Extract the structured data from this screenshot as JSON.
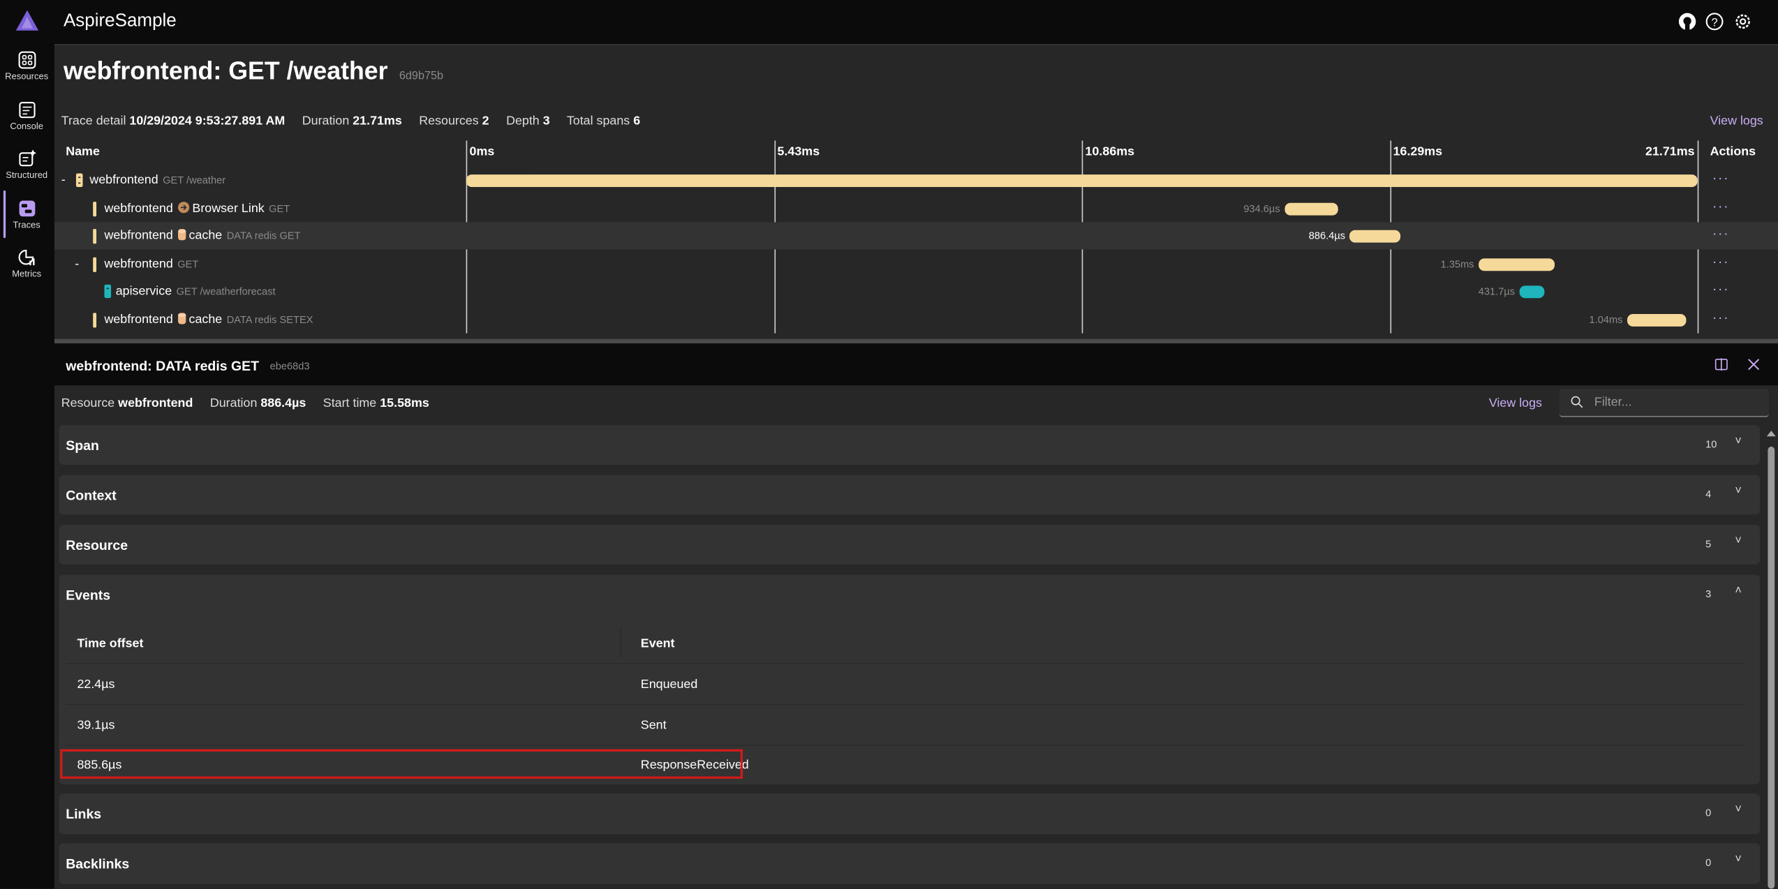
{
  "app": {
    "title": "AspireSample"
  },
  "colors": {
    "accent": "#c9aef5",
    "webfrontend": "#f5d99a",
    "apiservice": "#1fb5bd",
    "highlight": "#d11a1a"
  },
  "topbar_icons": [
    "github-icon",
    "help-icon",
    "settings-icon"
  ],
  "nav": [
    {
      "label": "Resources",
      "icon": "resources-icon"
    },
    {
      "label": "Console",
      "icon": "console-icon"
    },
    {
      "label": "Structured",
      "icon": "structured-icon"
    },
    {
      "label": "Traces",
      "icon": "traces-icon",
      "selected": true
    },
    {
      "label": "Metrics",
      "icon": "metrics-icon"
    }
  ],
  "trace": {
    "title": "webfrontend: GET /weather",
    "id": "6d9b75b",
    "detail_label": "Trace detail",
    "detail_value": "10/29/2024 9:53:27.891 AM",
    "duration_label": "Duration",
    "duration_value": "21.71ms",
    "resources_label": "Resources",
    "resources_value": "2",
    "depth_label": "Depth",
    "depth_value": "3",
    "spans_label": "Total spans",
    "spans_value": "6",
    "view_logs": "View logs",
    "col_name": "Name",
    "col_actions": "Actions",
    "ticks": [
      "0ms",
      "5.43ms",
      "10.86ms",
      "16.29ms",
      "21.71ms"
    ],
    "total_ms": 21.71,
    "spans": [
      {
        "toggle": "-",
        "service": "webfrontend",
        "peer": "",
        "desc": "GET /weather",
        "start_ms": 0,
        "duration_ms": 21.71,
        "duration": "",
        "color": "#f5d99a",
        "depth": 0
      },
      {
        "toggle": "",
        "service": "webfrontend",
        "peer": "Browser Link",
        "peer_icon": "arrow-circle-icon",
        "desc": "GET",
        "start_ms": 14.43,
        "duration_ms": 0.9346,
        "duration": "934.6µs",
        "color": "#f5d99a",
        "depth": 1
      },
      {
        "toggle": "",
        "service": "webfrontend",
        "peer": "cache",
        "peer_icon": "database-icon",
        "desc": "DATA redis GET",
        "start_ms": 15.58,
        "duration_ms": 0.8864,
        "duration": "886.4µs",
        "color": "#f5d99a",
        "depth": 1,
        "selected": true
      },
      {
        "toggle": "-",
        "service": "webfrontend",
        "peer": "",
        "desc": "GET",
        "start_ms": 17.85,
        "duration_ms": 1.35,
        "duration": "1.35ms",
        "color": "#f5d99a",
        "depth": 1
      },
      {
        "toggle": "",
        "service": "apiservice",
        "peer": "",
        "desc": "GET /weatherforecast",
        "start_ms": 18.57,
        "duration_ms": 0.4317,
        "duration": "431.7µs",
        "color": "#1fb5bd",
        "depth": 2
      },
      {
        "toggle": "",
        "service": "webfrontend",
        "peer": "cache",
        "peer_icon": "database-icon",
        "desc": "DATA redis SETEX",
        "start_ms": 20.47,
        "duration_ms": 1.04,
        "duration": "1.04ms",
        "color": "#f5d99a",
        "depth": 1
      }
    ],
    "actions_label": "···"
  },
  "detail": {
    "title": "webfrontend: DATA redis GET",
    "id": "ebe68d3",
    "resource_label": "Resource",
    "resource_value": "webfrontend",
    "duration_label": "Duration",
    "duration_value": "886.4µs",
    "start_label": "Start time",
    "start_value": "15.58ms",
    "view_logs": "View logs",
    "filter_placeholder": "Filter...",
    "sections": [
      {
        "title": "Span",
        "count": "10",
        "expanded": false
      },
      {
        "title": "Context",
        "count": "4",
        "expanded": false
      },
      {
        "title": "Resource",
        "count": "5",
        "expanded": false
      },
      {
        "title": "Events",
        "count": "3",
        "expanded": true
      },
      {
        "title": "Links",
        "count": "0",
        "expanded": false
      },
      {
        "title": "Backlinks",
        "count": "0",
        "expanded": false
      }
    ],
    "events": {
      "col_offset": "Time offset",
      "col_event": "Event",
      "rows": [
        {
          "offset": "22.4µs",
          "event": "Enqueued"
        },
        {
          "offset": "39.1µs",
          "event": "Sent"
        },
        {
          "offset": "885.6µs",
          "event": "ResponseReceived",
          "highlighted": true
        }
      ]
    }
  }
}
